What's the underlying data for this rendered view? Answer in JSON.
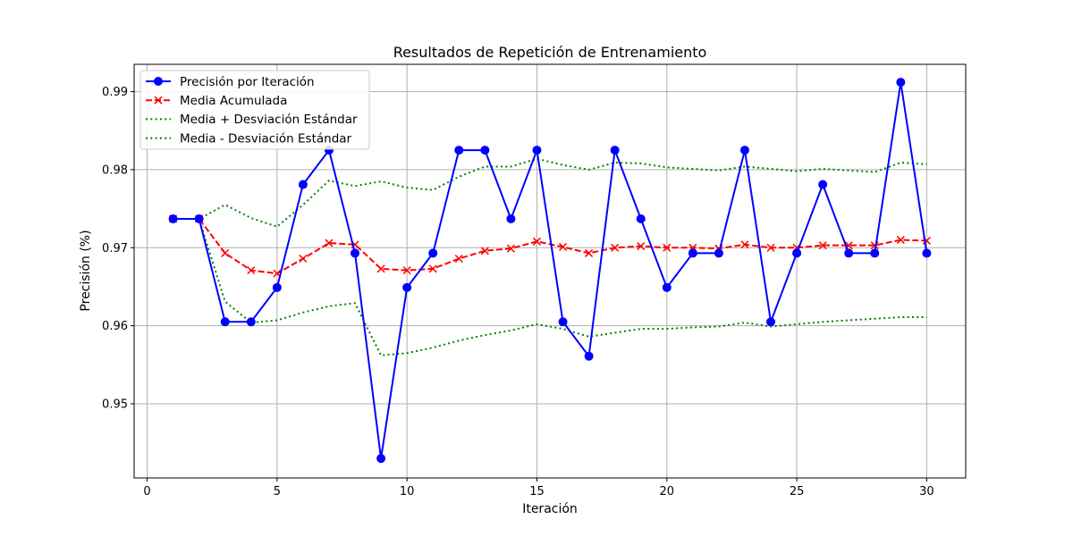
{
  "chart_data": {
    "type": "line",
    "title": "Resultados de Repetición de Entrenamiento",
    "xlabel": "Iteración",
    "ylabel": "Precisión (%)",
    "xlim": [
      -0.5,
      31.5
    ],
    "ylim": [
      0.9405,
      0.9935
    ],
    "xticks": [
      0,
      5,
      10,
      15,
      20,
      25,
      30
    ],
    "yticks": [
      0.95,
      0.96,
      0.97,
      0.98,
      0.99
    ],
    "grid": true,
    "legend_position": "top-left",
    "x": [
      1,
      2,
      3,
      4,
      5,
      6,
      7,
      8,
      9,
      10,
      11,
      12,
      13,
      14,
      15,
      16,
      17,
      18,
      19,
      20,
      21,
      22,
      23,
      24,
      25,
      26,
      27,
      28,
      29,
      30
    ],
    "series": [
      {
        "name": "Precisión por Iteración",
        "color": "#0000ff",
        "style": "solid",
        "marker": "circle",
        "values": [
          0.9737,
          0.9737,
          0.9605,
          0.9605,
          0.9649,
          0.9781,
          0.9825,
          0.9693,
          0.943,
          0.9649,
          0.9693,
          0.9825,
          0.9825,
          0.9737,
          0.9825,
          0.9605,
          0.9561,
          0.9825,
          0.9737,
          0.9649,
          0.9693,
          0.9693,
          0.9825,
          0.9605,
          0.9693,
          0.9781,
          0.9693,
          0.9693,
          0.9912,
          0.9693
        ]
      },
      {
        "name": "Media Acumulada",
        "color": "#ff0000",
        "style": "dashed",
        "marker": "x",
        "values": [
          0.9737,
          0.9737,
          0.9693,
          0.9671,
          0.9667,
          0.9686,
          0.9706,
          0.9704,
          0.9673,
          0.9671,
          0.9673,
          0.9686,
          0.9696,
          0.9699,
          0.9708,
          0.9701,
          0.9693,
          0.97,
          0.9702,
          0.97,
          0.97,
          0.9699,
          0.9704,
          0.97,
          0.97,
          0.9703,
          0.9703,
          0.9703,
          0.971,
          0.9709
        ]
      },
      {
        "name": "Media + Desviación Estándar",
        "color": "#008000",
        "style": "dotted",
        "marker": "none",
        "values": [
          0.9737,
          0.9737,
          0.9755,
          0.9738,
          0.9727,
          0.9755,
          0.9786,
          0.9779,
          0.9785,
          0.9777,
          0.9774,
          0.9791,
          0.9804,
          0.9804,
          0.9814,
          0.9806,
          0.98,
          0.9809,
          0.9808,
          0.9803,
          0.9801,
          0.9799,
          0.9804,
          0.9801,
          0.9798,
          0.9801,
          0.9799,
          0.9797,
          0.9809,
          0.9807
        ]
      },
      {
        "name": "Media - Desviación Estándar",
        "color": "#008000",
        "style": "dotted",
        "marker": "none",
        "values": [
          0.9737,
          0.9737,
          0.9631,
          0.9604,
          0.9607,
          0.9617,
          0.9625,
          0.9629,
          0.9562,
          0.9565,
          0.9572,
          0.9581,
          0.9588,
          0.9594,
          0.9602,
          0.9596,
          0.9586,
          0.9591,
          0.9596,
          0.9596,
          0.9598,
          0.9599,
          0.9604,
          0.9599,
          0.9602,
          0.9605,
          0.9607,
          0.9609,
          0.9611,
          0.9611
        ]
      }
    ]
  }
}
